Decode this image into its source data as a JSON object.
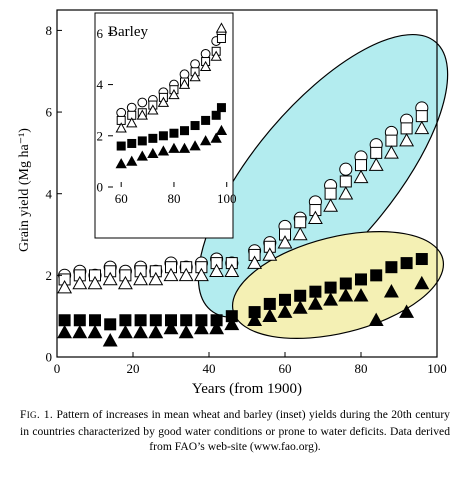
{
  "chart_data": [
    {
      "type": "scatter",
      "panel": "main",
      "title": "",
      "xlabel": "Years (from 1900)",
      "ylabel": "Grain yield (Mg ha⁻¹)",
      "xlim": [
        0,
        100
      ],
      "ylim": [
        0,
        8.5
      ],
      "xticks": [
        0,
        20,
        40,
        60,
        80,
        100
      ],
      "yticks": [
        0,
        2,
        4,
        6,
        8
      ],
      "grid": false,
      "legend": "none",
      "series": [
        {
          "marker": "open-circle",
          "x": [
            2,
            6,
            10,
            14,
            18,
            22,
            26,
            30,
            34,
            38,
            42,
            46,
            52,
            56,
            60,
            64,
            68,
            72,
            76,
            80,
            84,
            88,
            92,
            96
          ],
          "y": [
            2.0,
            2.1,
            2.0,
            2.2,
            2.1,
            2.2,
            2.1,
            2.3,
            2.2,
            2.3,
            2.4,
            2.3,
            2.6,
            2.8,
            3.2,
            3.4,
            3.8,
            4.2,
            4.6,
            4.9,
            5.2,
            5.5,
            5.8,
            6.1
          ]
        },
        {
          "marker": "open-square",
          "x": [
            2,
            6,
            10,
            14,
            18,
            22,
            26,
            30,
            34,
            38,
            42,
            46,
            52,
            56,
            60,
            64,
            68,
            72,
            76,
            80,
            84,
            88,
            92,
            96
          ],
          "y": [
            1.9,
            2.0,
            2.0,
            2.1,
            2.0,
            2.1,
            2.1,
            2.2,
            2.2,
            2.2,
            2.3,
            2.3,
            2.5,
            2.7,
            3.0,
            3.3,
            3.6,
            4.0,
            4.3,
            4.7,
            5.0,
            5.3,
            5.6,
            5.9
          ]
        },
        {
          "marker": "open-triangle",
          "x": [
            2,
            6,
            10,
            14,
            18,
            22,
            26,
            30,
            34,
            38,
            42,
            46,
            52,
            56,
            60,
            64,
            68,
            72,
            76,
            80,
            84,
            88,
            92,
            96
          ],
          "y": [
            1.7,
            1.8,
            1.8,
            1.9,
            1.8,
            1.9,
            1.9,
            2.0,
            2.0,
            2.0,
            2.1,
            2.1,
            2.3,
            2.5,
            2.8,
            3.0,
            3.4,
            3.7,
            4.0,
            4.4,
            4.7,
            5.0,
            5.3,
            5.6
          ]
        },
        {
          "marker": "filled-square",
          "x": [
            2,
            6,
            10,
            14,
            18,
            22,
            26,
            30,
            34,
            38,
            42,
            46,
            52,
            56,
            60,
            64,
            68,
            72,
            76,
            80,
            84,
            88,
            92,
            96
          ],
          "y": [
            0.9,
            0.9,
            0.9,
            0.8,
            0.9,
            0.9,
            0.9,
            0.9,
            0.9,
            0.9,
            0.9,
            1.0,
            1.1,
            1.3,
            1.4,
            1.5,
            1.6,
            1.7,
            1.8,
            1.9,
            2.0,
            2.2,
            2.3,
            2.4
          ]
        },
        {
          "marker": "filled-triangle",
          "x": [
            2,
            6,
            10,
            14,
            18,
            22,
            26,
            30,
            34,
            38,
            42,
            46,
            52,
            56,
            60,
            64,
            68,
            72,
            76,
            80,
            84,
            88,
            92,
            96
          ],
          "y": [
            0.6,
            0.6,
            0.6,
            0.4,
            0.6,
            0.6,
            0.6,
            0.7,
            0.6,
            0.7,
            0.7,
            0.8,
            0.9,
            1.0,
            1.1,
            1.2,
            1.3,
            1.4,
            1.5,
            1.5,
            0.9,
            1.6,
            1.1,
            1.8
          ]
        }
      ],
      "regions": [
        {
          "color": "#b3ecef",
          "note": "ellipse around rising open-symbol series"
        },
        {
          "color": "#f4f0b4",
          "note": "ellipse around filled-symbol series"
        }
      ]
    },
    {
      "type": "scatter",
      "panel": "inset",
      "title": "Barley",
      "xlabel": "",
      "ylabel": "",
      "xlim": [
        55,
        102
      ],
      "ylim": [
        0,
        6.6
      ],
      "xticks": [
        60,
        80,
        100
      ],
      "yticks": [
        0,
        2,
        4,
        6
      ],
      "grid": false,
      "legend": "none",
      "series": [
        {
          "marker": "open-circle",
          "x": [
            60,
            64,
            68,
            72,
            76,
            80,
            84,
            88,
            92,
            96,
            98
          ],
          "y": [
            2.9,
            3.1,
            3.3,
            3.4,
            3.7,
            4.0,
            4.4,
            4.8,
            5.2,
            5.7,
            6.0
          ]
        },
        {
          "marker": "open-square",
          "x": [
            60,
            64,
            68,
            72,
            76,
            80,
            84,
            88,
            92,
            96,
            98
          ],
          "y": [
            2.6,
            2.8,
            2.9,
            3.2,
            3.5,
            3.8,
            4.1,
            4.5,
            4.9,
            5.3,
            5.8
          ]
        },
        {
          "marker": "open-triangle",
          "x": [
            60,
            64,
            68,
            72,
            76,
            80,
            84,
            88,
            92,
            96,
            98
          ],
          "y": [
            2.3,
            2.5,
            2.8,
            3.0,
            3.3,
            3.6,
            4.0,
            4.3,
            4.7,
            5.1,
            6.2
          ]
        },
        {
          "marker": "filled-square",
          "x": [
            60,
            64,
            68,
            72,
            76,
            80,
            84,
            88,
            92,
            96,
            98
          ],
          "y": [
            1.6,
            1.7,
            1.8,
            1.9,
            2.0,
            2.1,
            2.2,
            2.4,
            2.6,
            2.8,
            3.1
          ]
        },
        {
          "marker": "filled-triangle",
          "x": [
            60,
            64,
            68,
            72,
            76,
            80,
            84,
            88,
            92,
            96,
            98
          ],
          "y": [
            0.9,
            1.0,
            1.2,
            1.3,
            1.4,
            1.5,
            1.5,
            1.6,
            1.8,
            1.9,
            2.2
          ]
        }
      ]
    }
  ],
  "caption": {
    "label": "F",
    "label_small": "IG",
    "label_rest": ". 1.",
    "text": "Pattern of increases in mean wheat and barley (inset) yields during the 20th century in countries characterized by good water conditions or prone to water deficits. Data derived from FAO’s web-site (www.fao.org)."
  }
}
